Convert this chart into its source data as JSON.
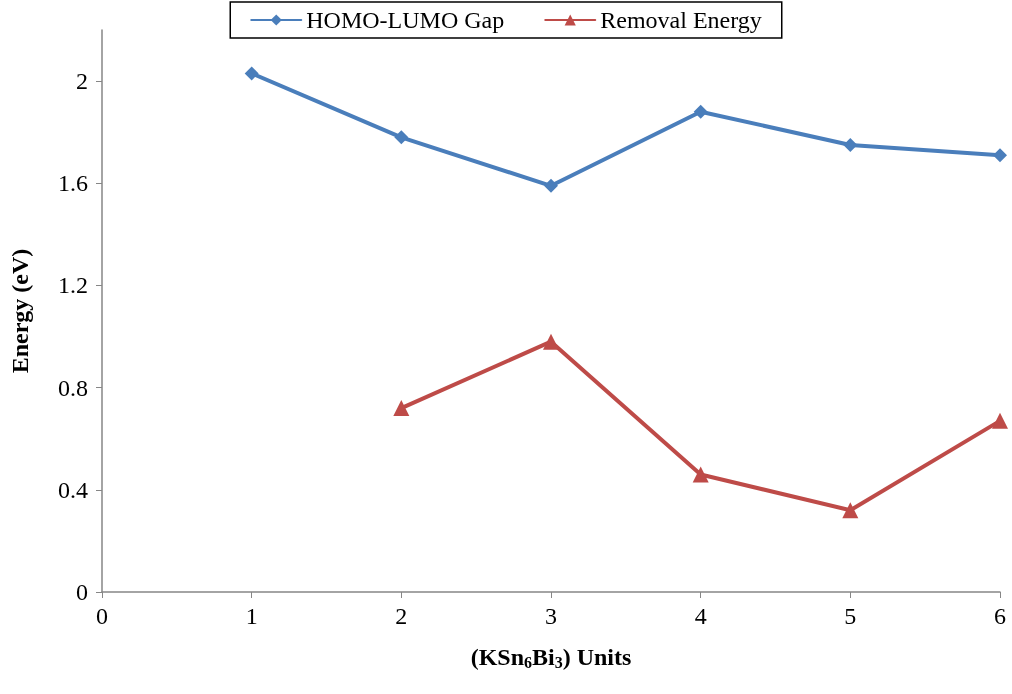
{
  "chart_data": {
    "type": "line",
    "xlabel": "(KSn$_{6}$Bi$_{3}$) Units",
    "ylabel": "Energy (eV)",
    "x": [
      1,
      2,
      3,
      4,
      5,
      6
    ],
    "series": [
      {
        "name": "HOMO-LUMO Gap",
        "color": "#4a7ebb",
        "marker": "diamond",
        "values": [
          2.03,
          1.78,
          1.59,
          1.88,
          1.75,
          1.71
        ]
      },
      {
        "name": "Removal Energy",
        "color": "#be4b48",
        "marker": "triangle",
        "values": [
          null,
          0.72,
          0.98,
          0.46,
          0.32,
          0.67
        ]
      }
    ],
    "xlim": [
      0,
      6
    ],
    "xticks": [
      0,
      1,
      2,
      3,
      4,
      5,
      6
    ],
    "ylim": [
      0,
      2.2
    ],
    "yticks": [
      0,
      0.4,
      0.8,
      1.2,
      1.6,
      2
    ],
    "grid": false,
    "legend": "top",
    "line_style": "solid"
  }
}
